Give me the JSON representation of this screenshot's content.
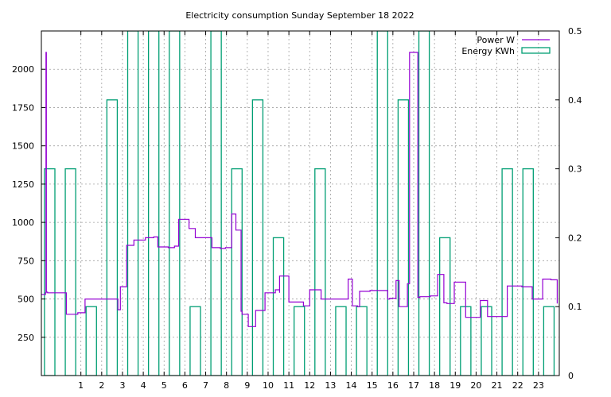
{
  "chart_data": {
    "type": "line",
    "title": "Electricity consumption Sunday September 18 2022",
    "xlabel": "",
    "ylabel": "",
    "y2label": "",
    "xlim": [
      -0.9,
      24.0
    ],
    "ylim": [
      0,
      2250
    ],
    "y2lim": [
      0,
      0.5
    ],
    "x_ticks": [
      "1",
      "2",
      "3",
      "4",
      "5",
      "6",
      "7",
      "8",
      "9",
      "10",
      "11",
      "12",
      "13",
      "14",
      "15",
      "16",
      "17",
      "18",
      "19",
      "20",
      "21",
      "22",
      "23"
    ],
    "y_ticks": [
      "250",
      "500",
      "750",
      "1000",
      "1250",
      "1500",
      "1750",
      "2000"
    ],
    "y2_ticks": [
      "0",
      "0.1",
      "0.2",
      "0.3",
      "0.4",
      "0.5"
    ],
    "grid": true,
    "legend_position": "top-right",
    "colors": {
      "power": "#9400d3",
      "energy": "#009e73",
      "grid": "#a0a0a0"
    },
    "series": [
      {
        "name": "Power W",
        "axis": "y1",
        "style": "steps",
        "x": [
          -0.9,
          -0.7,
          -0.68,
          -0.66,
          -0.6,
          -0.3,
          0.0,
          0.3,
          0.35,
          0.8,
          0.85,
          1.2,
          1.9,
          2.0,
          2.5,
          2.7,
          2.78,
          2.9,
          3.2,
          3.2,
          3.55,
          3.55,
          4.1,
          4.5,
          4.7,
          5.2,
          5.5,
          5.7,
          6.2,
          6.5,
          6.5,
          6.8,
          7.3,
          7.7,
          7.7,
          7.95,
          8.25,
          8.45,
          8.7,
          8.75,
          9.05,
          9.4,
          9.4,
          9.85,
          9.85,
          10.2,
          10.3,
          10.35,
          10.55,
          10.55,
          10.9,
          11.0,
          11.2,
          11.7,
          12.0,
          12.25,
          12.55,
          12.85,
          13.15,
          13.5,
          13.55,
          13.85,
          14.05,
          14.3,
          14.4,
          14.9,
          15.3,
          15.75,
          15.85,
          16.15,
          16.3,
          16.5,
          16.7,
          16.8,
          17.2,
          17.3,
          17.8,
          17.9,
          18.05,
          18.15,
          18.45,
          18.6,
          18.75,
          18.95,
          19.5,
          19.7,
          20.2,
          20.4,
          20.55,
          21.0,
          21.5,
          21.85,
          22.2,
          22.5,
          22.7,
          22.9,
          23.2,
          23.6,
          23.9
        ],
        "y": [
          530,
          540,
          2110,
          545,
          540,
          540,
          540,
          400,
          400,
          400,
          410,
          500,
          500,
          500,
          500,
          500,
          430,
          580,
          850,
          850,
          885,
          885,
          900,
          905,
          840,
          835,
          845,
          1020,
          960,
          960,
          900,
          900,
          835,
          835,
          830,
          835,
          1055,
          950,
          420,
          400,
          320,
          320,
          425,
          425,
          540,
          540,
          540,
          560,
          540,
          650,
          650,
          480,
          480,
          455,
          560,
          560,
          500,
          500,
          500,
          500,
          500,
          630,
          455,
          450,
          550,
          555,
          555,
          500,
          505,
          620,
          450,
          450,
          600,
          2110,
          510,
          515,
          520,
          520,
          520,
          660,
          475,
          470,
          470,
          610,
          380,
          380,
          490,
          490,
          385,
          385,
          585,
          585,
          580,
          580,
          500,
          500,
          630,
          625,
          470
        ]
      },
      {
        "name": "Energy KWh",
        "axis": "y2",
        "style": "boxes",
        "x": [
          -0.5,
          0.5,
          1.5,
          2.5,
          3.5,
          4.5,
          5.5,
          6.5,
          7.5,
          8.5,
          9.5,
          10.5,
          11.5,
          12.5,
          13.5,
          14.5,
          15.5,
          16.5,
          17.5,
          18.5,
          19.5,
          20.5,
          21.5,
          22.5,
          23.5
        ],
        "box_width": 0.5,
        "y": [
          0.3,
          0.3,
          0.1,
          0.4,
          0.5,
          0.5,
          0.5,
          0.1,
          0.5,
          0.3,
          0.4,
          0.2,
          0.1,
          0.3,
          0.1,
          0.1,
          0.5,
          0.4,
          0.5,
          0.2,
          0.1,
          0.1,
          0.3,
          0.3,
          0.1
        ]
      }
    ]
  }
}
